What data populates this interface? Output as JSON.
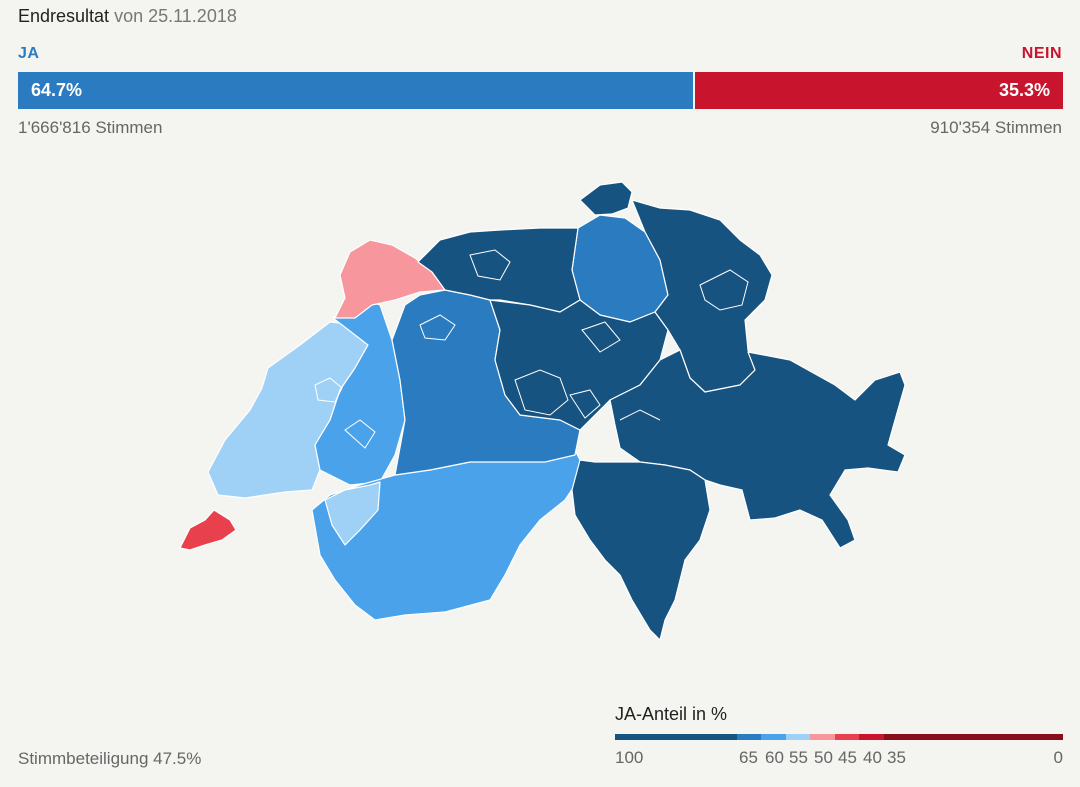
{
  "header": {
    "title": "Endresultat",
    "date_text": "von 25.11.2018"
  },
  "result": {
    "ja_label": "JA",
    "nein_label": "NEIN",
    "ja_percent_text": "64.7%",
    "nein_percent_text": "35.3%",
    "ja_share": 64.7,
    "ja_votes_text": "1'666'816 Stimmen",
    "nein_votes_text": "910'354 Stimmen"
  },
  "colors": {
    "ja_bar": "#2b7bc0",
    "nein_bar": "#c8142c",
    "class_ja_65_100": "#165381",
    "class_ja_60_65": "#2b7bc0",
    "class_ja_55_60": "#4aa3ea",
    "class_ja_50_55": "#9fd0f6",
    "class_nein_45_50": "#f7969c",
    "class_nein_40_45": "#e8404d",
    "class_nein_35_40": "#c8142c",
    "class_nein_0_35": "#8a0d1c"
  },
  "turnout": {
    "text": "Stimmbeteiligung 47.5%"
  },
  "legend": {
    "title": "JA-Anteil in %",
    "ticks": [
      "100",
      "65",
      "60",
      "55",
      "50",
      "45",
      "40",
      "35",
      "0"
    ]
  }
}
